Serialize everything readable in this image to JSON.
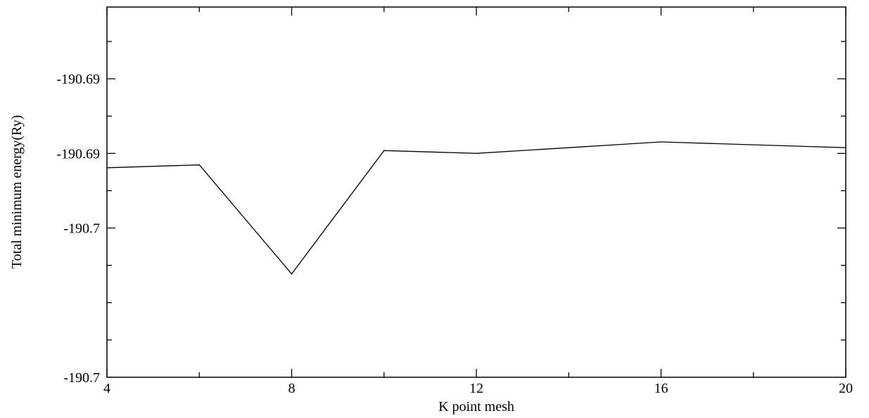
{
  "chart_data": {
    "type": "line",
    "xlabel": "K point mesh",
    "ylabel": "Total minimum energy(Ry)",
    "xlim": [
      4,
      20
    ],
    "ylim": [
      -190.6985,
      -190.6856
    ],
    "x_ticks": [
      4,
      8,
      12,
      16,
      20
    ],
    "x_tick_labels": [
      "4",
      "8",
      "12",
      "16",
      "20"
    ],
    "y_ticks": [
      -190.6881,
      -190.6907,
      -190.6933,
      -190.6985
    ],
    "y_tick_labels": [
      "-190.69",
      "-190.69",
      "-190.7",
      "-190.7"
    ],
    "grid": false,
    "line_color": "#000000",
    "series": [
      {
        "x": [
          4,
          6,
          8,
          10,
          12,
          14,
          16,
          18,
          20
        ],
        "y": [
          -190.6912,
          -190.6911,
          -190.6949,
          -190.6906,
          -190.6907,
          -190.6905,
          -190.6903,
          -190.6904,
          -190.6905
        ]
      }
    ]
  }
}
